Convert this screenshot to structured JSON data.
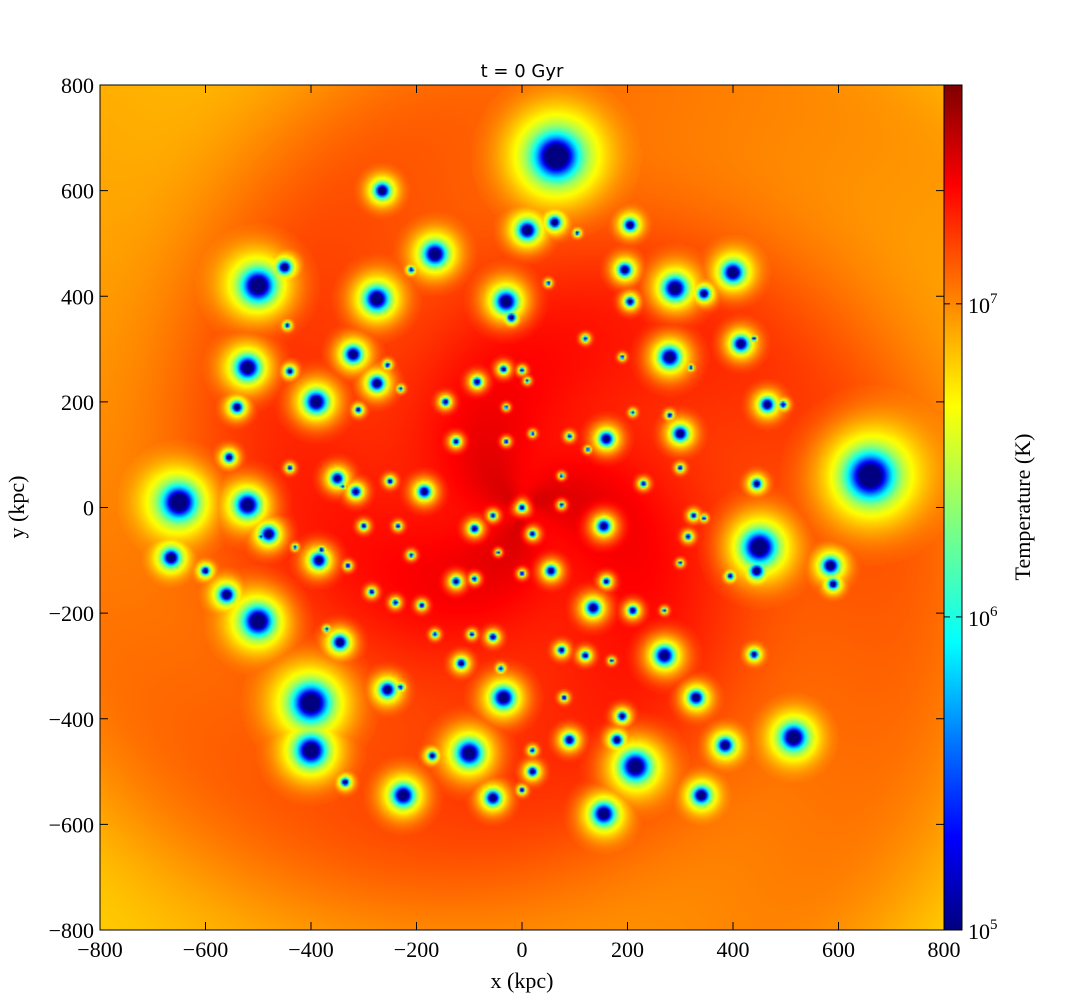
{
  "chart_data": {
    "type": "heatmap",
    "title": "t = 0 Gyr",
    "xlabel": "x  (kpc)",
    "ylabel": "y  (kpc)",
    "xlim": [
      -800,
      800
    ],
    "ylim": [
      -800,
      800
    ],
    "x_ticks": [
      -800,
      -600,
      -400,
      -200,
      0,
      200,
      400,
      600,
      800
    ],
    "y_ticks": [
      -800,
      -600,
      -400,
      -200,
      0,
      200,
      400,
      600,
      800
    ],
    "x_tick_labels": [
      "−800",
      "−600",
      "−400",
      "−200",
      "0",
      "200",
      "400",
      "600",
      "800"
    ],
    "y_tick_labels": [
      "−800",
      "−600",
      "−400",
      "−200",
      "0",
      "200",
      "400",
      "600",
      "800"
    ],
    "colorbar": {
      "label": "Temperature  (K)",
      "scale": "log",
      "range": [
        100000,
        50000000
      ],
      "ticks": [
        {
          "value": 100000,
          "base": "10",
          "exp": "5"
        },
        {
          "value": 1000000,
          "base": "10",
          "exp": "6"
        },
        {
          "value": 10000000,
          "base": "10",
          "exp": "7"
        }
      ],
      "colormap": "jet"
    },
    "clumps": [
      {
        "x": 65,
        "y": 665,
        "r": 85
      },
      {
        "x": -265,
        "y": 600,
        "r": 28
      },
      {
        "x": 10,
        "y": 525,
        "r": 34
      },
      {
        "x": 62,
        "y": 540,
        "r": 22
      },
      {
        "x": 205,
        "y": 535,
        "r": 22
      },
      {
        "x": -165,
        "y": 480,
        "r": 42
      },
      {
        "x": -450,
        "y": 455,
        "r": 25
      },
      {
        "x": -500,
        "y": 420,
        "r": 62
      },
      {
        "x": -275,
        "y": 395,
        "r": 45
      },
      {
        "x": -30,
        "y": 390,
        "r": 42
      },
      {
        "x": 195,
        "y": 450,
        "r": 25
      },
      {
        "x": 290,
        "y": 415,
        "r": 45
      },
      {
        "x": 400,
        "y": 445,
        "r": 38
      },
      {
        "x": 345,
        "y": 405,
        "r": 22
      },
      {
        "x": 205,
        "y": 390,
        "r": 18
      },
      {
        "x": -20,
        "y": 360,
        "r": 18
      },
      {
        "x": -320,
        "y": 290,
        "r": 32
      },
      {
        "x": -520,
        "y": 265,
        "r": 45
      },
      {
        "x": -440,
        "y": 258,
        "r": 15
      },
      {
        "x": -275,
        "y": 235,
        "r": 28
      },
      {
        "x": 280,
        "y": 285,
        "r": 40
      },
      {
        "x": 415,
        "y": 310,
        "r": 30
      },
      {
        "x": -390,
        "y": 200,
        "r": 42
      },
      {
        "x": -540,
        "y": 190,
        "r": 22
      },
      {
        "x": -85,
        "y": 238,
        "r": 18
      },
      {
        "x": -35,
        "y": 262,
        "r": 15
      },
      {
        "x": 160,
        "y": 130,
        "r": 28
      },
      {
        "x": 300,
        "y": 140,
        "r": 28
      },
      {
        "x": 465,
        "y": 195,
        "r": 26
      },
      {
        "x": 660,
        "y": 60,
        "r": 90
      },
      {
        "x": -650,
        "y": 10,
        "r": 62
      },
      {
        "x": -520,
        "y": 5,
        "r": 45
      },
      {
        "x": -555,
        "y": 95,
        "r": 18
      },
      {
        "x": -350,
        "y": 55,
        "r": 25
      },
      {
        "x": -315,
        "y": 30,
        "r": 20
      },
      {
        "x": -185,
        "y": 30,
        "r": 25
      },
      {
        "x": -125,
        "y": 125,
        "r": 15
      },
      {
        "x": -145,
        "y": 200,
        "r": 15
      },
      {
        "x": -480,
        "y": -50,
        "r": 30
      },
      {
        "x": -665,
        "y": -95,
        "r": 30
      },
      {
        "x": -385,
        "y": -100,
        "r": 30
      },
      {
        "x": 445,
        "y": 45,
        "r": 18
      },
      {
        "x": 450,
        "y": -75,
        "r": 62
      },
      {
        "x": 445,
        "y": -120,
        "r": 25
      },
      {
        "x": 585,
        "y": -110,
        "r": 30
      },
      {
        "x": 590,
        "y": -145,
        "r": 18
      },
      {
        "x": -560,
        "y": -165,
        "r": 28
      },
      {
        "x": -500,
        "y": -215,
        "r": 55
      },
      {
        "x": -345,
        "y": -255,
        "r": 28
      },
      {
        "x": 155,
        "y": -35,
        "r": 28
      },
      {
        "x": 55,
        "y": -120,
        "r": 22
      },
      {
        "x": 135,
        "y": -190,
        "r": 28
      },
      {
        "x": 210,
        "y": -195,
        "r": 18
      },
      {
        "x": 270,
        "y": -280,
        "r": 38
      },
      {
        "x": -125,
        "y": -140,
        "r": 18
      },
      {
        "x": -90,
        "y": -40,
        "r": 18
      },
      {
        "x": 0,
        "y": 0,
        "r": 15
      },
      {
        "x": 20,
        "y": -50,
        "r": 14
      },
      {
        "x": -255,
        "y": -345,
        "r": 28
      },
      {
        "x": -400,
        "y": -370,
        "r": 70
      },
      {
        "x": -400,
        "y": -460,
        "r": 55
      },
      {
        "x": -35,
        "y": -360,
        "r": 40
      },
      {
        "x": -115,
        "y": -295,
        "r": 18
      },
      {
        "x": -55,
        "y": -245,
        "r": 15
      },
      {
        "x": 330,
        "y": -360,
        "r": 28
      },
      {
        "x": 190,
        "y": -395,
        "r": 18
      },
      {
        "x": -100,
        "y": -465,
        "r": 48
      },
      {
        "x": 90,
        "y": -440,
        "r": 22
      },
      {
        "x": 180,
        "y": -440,
        "r": 22
      },
      {
        "x": 215,
        "y": -490,
        "r": 55
      },
      {
        "x": 385,
        "y": -450,
        "r": 28
      },
      {
        "x": 515,
        "y": -435,
        "r": 45
      },
      {
        "x": -225,
        "y": -545,
        "r": 40
      },
      {
        "x": -55,
        "y": -550,
        "r": 28
      },
      {
        "x": 20,
        "y": -500,
        "r": 18
      },
      {
        "x": 155,
        "y": -580,
        "r": 40
      },
      {
        "x": 340,
        "y": -545,
        "r": 30
      },
      {
        "x": -335,
        "y": -520,
        "r": 15
      },
      {
        "x": -170,
        "y": -470,
        "r": 15
      },
      {
        "x": 75,
        "y": -270,
        "r": 15
      },
      {
        "x": 120,
        "y": -280,
        "r": 15
      },
      {
        "x": 440,
        "y": -278,
        "r": 15
      },
      {
        "x": 160,
        "y": -140,
        "r": 15
      },
      {
        "x": 230,
        "y": 45,
        "r": 12
      },
      {
        "x": 325,
        "y": -15,
        "r": 12
      },
      {
        "x": 315,
        "y": -55,
        "r": 12
      },
      {
        "x": 395,
        "y": -130,
        "r": 12
      },
      {
        "x": 495,
        "y": 195,
        "r": 12
      },
      {
        "x": 280,
        "y": 175,
        "r": 10
      },
      {
        "x": 300,
        "y": 75,
        "r": 10
      },
      {
        "x": 120,
        "y": 320,
        "r": 10
      },
      {
        "x": 90,
        "y": 135,
        "r": 10
      },
      {
        "x": -250,
        "y": 50,
        "r": 12
      },
      {
        "x": -285,
        "y": -160,
        "r": 12
      },
      {
        "x": -240,
        "y": -180,
        "r": 12
      },
      {
        "x": -190,
        "y": -185,
        "r": 12
      },
      {
        "x": -55,
        "y": -15,
        "r": 12
      },
      {
        "x": 75,
        "y": 5,
        "r": 10
      },
      {
        "x": -30,
        "y": 125,
        "r": 10
      },
      {
        "x": -310,
        "y": 185,
        "r": 12
      },
      {
        "x": -255,
        "y": 270,
        "r": 10
      },
      {
        "x": -440,
        "y": 75,
        "r": 10
      },
      {
        "x": -445,
        "y": 345,
        "r": 10
      },
      {
        "x": -600,
        "y": -120,
        "r": 15
      },
      {
        "x": -380,
        "y": -80,
        "r": 10
      },
      {
        "x": -230,
        "y": -340,
        "r": 10
      },
      {
        "x": 0,
        "y": -125,
        "r": 10
      },
      {
        "x": -40,
        "y": -305,
        "r": 10
      },
      {
        "x": 80,
        "y": -360,
        "r": 10
      },
      {
        "x": 20,
        "y": -460,
        "r": 10
      },
      {
        "x": 0,
        "y": -535,
        "r": 10
      },
      {
        "x": -90,
        "y": -135,
        "r": 12
      },
      {
        "x": -95,
        "y": -240,
        "r": 10
      },
      {
        "x": -165,
        "y": -240,
        "r": 10
      },
      {
        "x": -210,
        "y": -90,
        "r": 10
      },
      {
        "x": -300,
        "y": -35,
        "r": 12
      },
      {
        "x": -235,
        "y": -35,
        "r": 10
      },
      {
        "x": -330,
        "y": -110,
        "r": 10
      },
      {
        "x": -210,
        "y": 450,
        "r": 10
      },
      {
        "x": 50,
        "y": 425,
        "r": 8
      },
      {
        "x": 105,
        "y": 520,
        "r": 8
      },
      {
        "x": -30,
        "y": 190,
        "r": 8
      },
      {
        "x": 10,
        "y": 240,
        "r": 8
      },
      {
        "x": 0,
        "y": 260,
        "r": 10
      },
      {
        "x": 20,
        "y": 140,
        "r": 8
      },
      {
        "x": -45,
        "y": -85,
        "r": 8
      },
      {
        "x": 270,
        "y": -195,
        "r": 8
      },
      {
        "x": 300,
        "y": -105,
        "r": 8
      },
      {
        "x": 345,
        "y": -20,
        "r": 8
      },
      {
        "x": 210,
        "y": 180,
        "r": 8
      },
      {
        "x": 320,
        "y": 265,
        "r": 8
      },
      {
        "x": 190,
        "y": 285,
        "r": 8
      },
      {
        "x": 440,
        "y": 320,
        "r": 8
      },
      {
        "x": 170,
        "y": -290,
        "r": 8
      },
      {
        "x": 75,
        "y": 60,
        "r": 8
      },
      {
        "x": -230,
        "y": 225,
        "r": 8
      },
      {
        "x": -370,
        "y": -230,
        "r": 8
      },
      {
        "x": -430,
        "y": -75,
        "r": 8
      },
      {
        "x": -495,
        "y": -55,
        "r": 8
      },
      {
        "x": -340,
        "y": 40,
        "r": 8
      },
      {
        "x": 125,
        "y": 110,
        "r": 8
      }
    ]
  }
}
